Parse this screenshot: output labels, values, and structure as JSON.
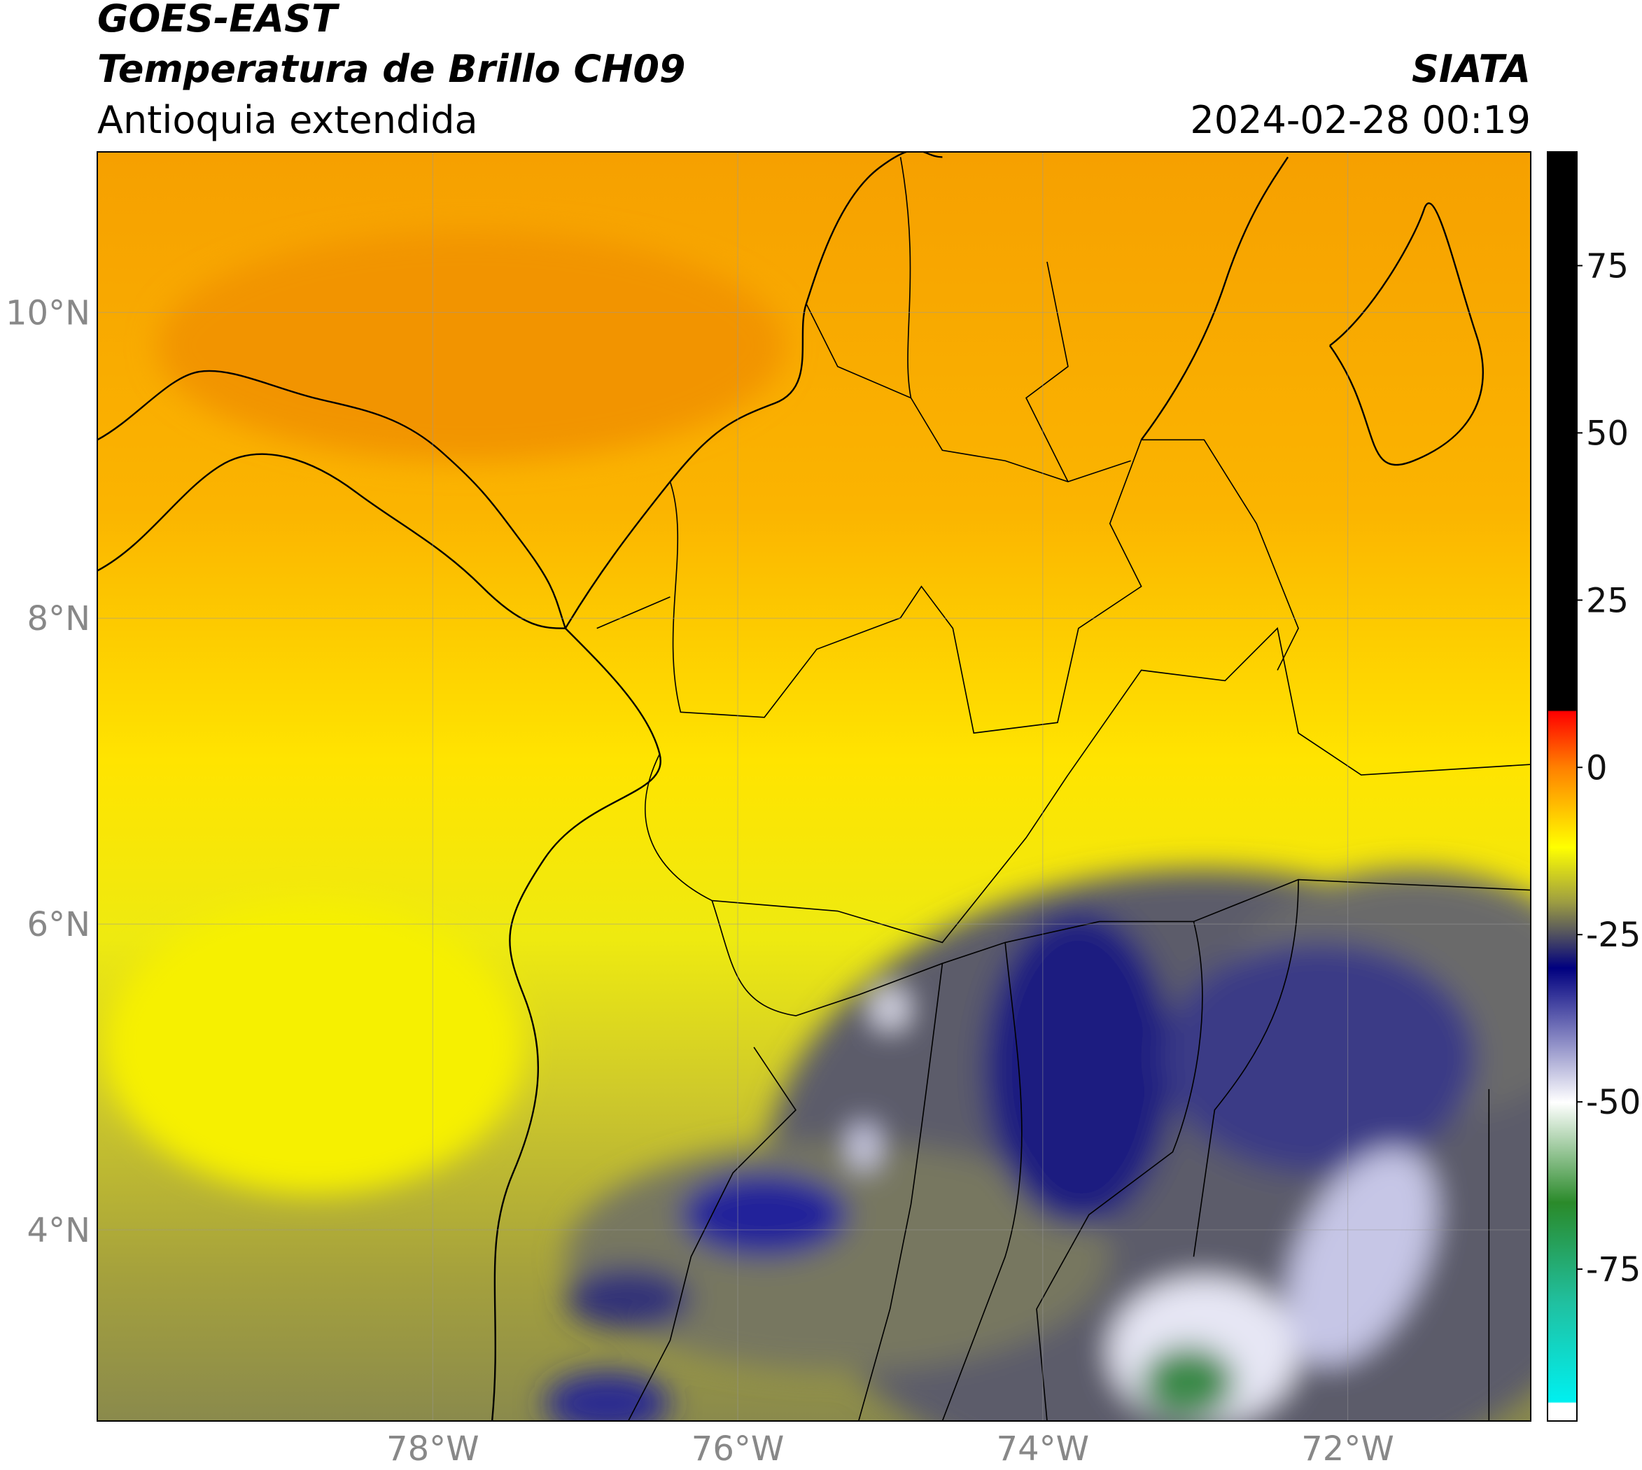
{
  "header": {
    "title": "GOES-EAST",
    "subtitle": "Temperatura de Brillo CH09",
    "region": "Antioquia extendida",
    "source": "SIATA",
    "datetime": "2024-02-28 00:19"
  },
  "map": {
    "xlim": [
      -80.2,
      -70.8
    ],
    "ylim": [
      2.75,
      11.05
    ],
    "xticks": [
      {
        "value": -78,
        "label": "78°W"
      },
      {
        "value": -76,
        "label": "76°W"
      },
      {
        "value": -74,
        "label": "74°W"
      },
      {
        "value": -72,
        "label": "72°W"
      }
    ],
    "yticks": [
      {
        "value": 10,
        "label": "10°N"
      },
      {
        "value": 8,
        "label": "8°N"
      },
      {
        "value": 6,
        "label": "6°N"
      },
      {
        "value": 4,
        "label": "4°N"
      }
    ],
    "grid": true
  },
  "colorbar": {
    "lim": [
      -97.7,
      92
    ],
    "ticks": [
      75,
      50,
      25,
      0,
      -25,
      -50,
      -75
    ]
  }
}
